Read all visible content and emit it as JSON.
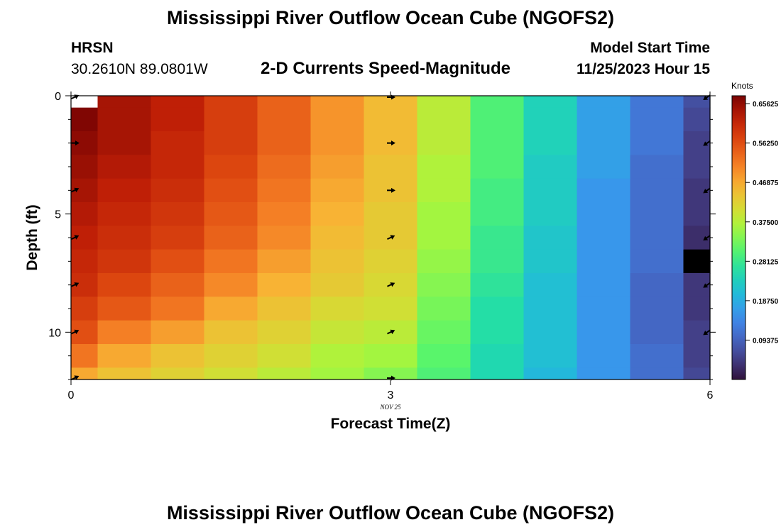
{
  "header": {
    "title": "Mississippi River Outflow Ocean Cube (NGOFS2)",
    "station_name": "HRSN",
    "station_coords": "30.2610N  89.0801W",
    "plot_title": "2-D Currents Speed-Magnitude",
    "model_start_label": "Model Start Time",
    "model_start_value": "11/25/2023 Hour 15"
  },
  "footer": {
    "title": "Mississippi River Outflow Ocean Cube (NGOFS2)"
  },
  "chart_data": {
    "type": "heatmap",
    "title": "2-D Currents Speed-Magnitude",
    "xlabel": "Forecast Time(Z)",
    "ylabel": "Depth (ft)",
    "date_label": "NOV 25",
    "xlim": [
      0,
      6
    ],
    "ylim": [
      0,
      12
    ],
    "y_inverted": true,
    "x_ticks": [
      0,
      3,
      6
    ],
    "x_tick_labels": [
      "0",
      "3",
      "6"
    ],
    "y_ticks": [
      0,
      5,
      10
    ],
    "y_tick_labels": [
      "0",
      "5",
      "10"
    ],
    "time_columns": [
      0,
      0.5,
      1,
      1.5,
      2,
      2.5,
      3,
      3.5,
      4,
      4.5,
      5,
      5.5,
      6
    ],
    "depth_rows": [
      0,
      1,
      2,
      3,
      4,
      5,
      6,
      7,
      8,
      9,
      10,
      11,
      12
    ],
    "colorbar": {
      "label": "Knots",
      "min": 0,
      "max": 0.675,
      "tick_values": [
        0.09375,
        0.1875,
        0.28125,
        0.375,
        0.46875,
        0.5625,
        0.65625
      ],
      "tick_labels": [
        "0.09375",
        "0.18750",
        "0.28125",
        "0.37500",
        "0.46875",
        "0.56250",
        "0.65625"
      ]
    },
    "speed_knots": [
      [
        null,
        0.64,
        0.62,
        0.58,
        0.54,
        0.49,
        0.45,
        0.38,
        0.3,
        0.24,
        0.17,
        0.12,
        0.07
      ],
      [
        0.67,
        0.64,
        0.62,
        0.58,
        0.54,
        0.49,
        0.45,
        0.38,
        0.3,
        0.24,
        0.17,
        0.12,
        0.06
      ],
      [
        0.66,
        0.64,
        0.61,
        0.58,
        0.54,
        0.49,
        0.45,
        0.38,
        0.3,
        0.24,
        0.17,
        0.12,
        0.05
      ],
      [
        0.65,
        0.63,
        0.61,
        0.57,
        0.53,
        0.48,
        0.44,
        0.37,
        0.3,
        0.23,
        0.17,
        0.11,
        0.05
      ],
      [
        0.64,
        0.62,
        0.6,
        0.56,
        0.52,
        0.47,
        0.44,
        0.37,
        0.29,
        0.23,
        0.16,
        0.11,
        0.04
      ],
      [
        0.63,
        0.61,
        0.59,
        0.55,
        0.51,
        0.46,
        0.43,
        0.36,
        0.29,
        0.23,
        0.16,
        0.11,
        0.04
      ],
      [
        0.62,
        0.6,
        0.58,
        0.54,
        0.5,
        0.45,
        0.43,
        0.36,
        0.28,
        0.22,
        0.16,
        0.11,
        0.03
      ],
      [
        0.61,
        0.59,
        0.56,
        0.52,
        0.48,
        0.44,
        0.42,
        0.35,
        0.28,
        0.22,
        0.16,
        0.11,
        0.0
      ],
      [
        0.6,
        0.57,
        0.54,
        0.5,
        0.46,
        0.43,
        0.41,
        0.34,
        0.27,
        0.21,
        0.16,
        0.1,
        0.04
      ],
      [
        0.58,
        0.55,
        0.52,
        0.47,
        0.44,
        0.41,
        0.4,
        0.33,
        0.26,
        0.21,
        0.16,
        0.1,
        0.04
      ],
      [
        0.56,
        0.51,
        0.48,
        0.44,
        0.42,
        0.39,
        0.38,
        0.32,
        0.26,
        0.21,
        0.16,
        0.1,
        0.05
      ],
      [
        0.52,
        0.47,
        0.44,
        0.42,
        0.4,
        0.37,
        0.36,
        0.31,
        0.25,
        0.21,
        0.16,
        0.11,
        0.05
      ],
      [
        0.47,
        0.44,
        0.42,
        0.4,
        0.38,
        0.36,
        0.34,
        0.3,
        0.25,
        0.2,
        0.16,
        0.11,
        0.06
      ]
    ],
    "vector_arrows": [
      {
        "time": 0,
        "depth": 0,
        "dir": "ne"
      },
      {
        "time": 0,
        "depth": 2,
        "dir": "e"
      },
      {
        "time": 0,
        "depth": 4,
        "dir": "ne"
      },
      {
        "time": 0,
        "depth": 6,
        "dir": "ne"
      },
      {
        "time": 0,
        "depth": 8,
        "dir": "ne"
      },
      {
        "time": 0,
        "depth": 10,
        "dir": "ne"
      },
      {
        "time": 0,
        "depth": 12,
        "dir": "ne"
      },
      {
        "time": 3,
        "depth": 0,
        "dir": "e"
      },
      {
        "time": 3,
        "depth": 2,
        "dir": "e"
      },
      {
        "time": 3,
        "depth": 4,
        "dir": "e"
      },
      {
        "time": 3,
        "depth": 6,
        "dir": "ne"
      },
      {
        "time": 3,
        "depth": 8,
        "dir": "ne"
      },
      {
        "time": 3,
        "depth": 10,
        "dir": "ne"
      },
      {
        "time": 3,
        "depth": 12,
        "dir": "e"
      },
      {
        "time": 6,
        "depth": 0,
        "dir": "sw"
      },
      {
        "time": 6,
        "depth": 2,
        "dir": "sw"
      },
      {
        "time": 6,
        "depth": 4,
        "dir": "sw"
      },
      {
        "time": 6,
        "depth": 6,
        "dir": "sw"
      },
      {
        "time": 6,
        "depth": 8,
        "dir": "sw"
      },
      {
        "time": 6,
        "depth": 10,
        "dir": "sw"
      }
    ]
  }
}
